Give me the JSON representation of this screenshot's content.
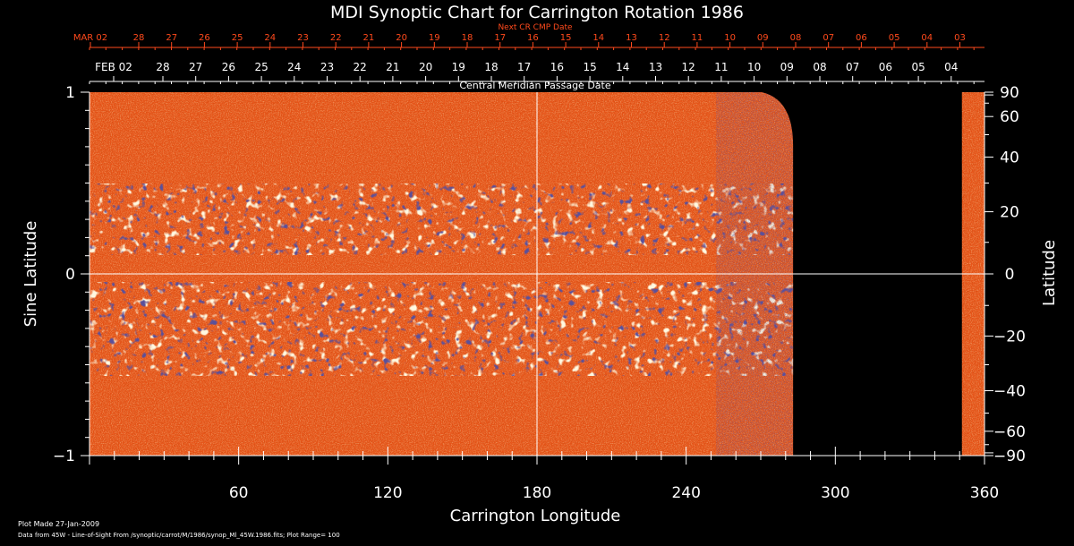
{
  "chart_data": {
    "type": "heatmap",
    "title": "MDI Synoptic Chart for Carrington Rotation 1986",
    "xlabel": "Carrington Longitude",
    "ylabel_left": "Sine Latitude",
    "ylabel_right": "Latitude",
    "xlim": [
      0,
      360
    ],
    "ylim": [
      -1,
      1
    ],
    "x_ticks": [
      60,
      120,
      180,
      240,
      300,
      360
    ],
    "y_left_ticks": [
      {
        "v": 1,
        "label": "1"
      },
      {
        "v": 0,
        "label": "0"
      },
      {
        "v": -1,
        "label": "−1"
      }
    ],
    "y_right_ticks": [
      90,
      60,
      40,
      20,
      0,
      -20,
      -40,
      -60,
      -90
    ],
    "y_right_labels": [
      "90",
      "60",
      "40",
      "20",
      "0",
      "−20",
      "−40",
      "−60",
      "−90"
    ],
    "top_axis_cmp_label": "Central Meridian Passage Date",
    "top_axis_next_label": "Next CR CMP Date",
    "cmp_dates": [
      "FEB 02",
      "28",
      "27",
      "26",
      "25",
      "24",
      "23",
      "22",
      "21",
      "20",
      "19",
      "18",
      "17",
      "16",
      "15",
      "14",
      "13",
      "12",
      "11",
      "10",
      "09",
      "08",
      "07",
      "06",
      "05",
      "04"
    ],
    "next_cmp_dates": [
      "MAR 02",
      "28",
      "27",
      "26",
      "25",
      "24",
      "23",
      "22",
      "21",
      "20",
      "19",
      "18",
      "17",
      "16",
      "15",
      "14",
      "13",
      "12",
      "11",
      "10",
      "09",
      "08",
      "07",
      "06",
      "05",
      "04",
      "03"
    ],
    "data_coverage_longitude": [
      [
        0,
        283
      ],
      [
        352,
        360
      ]
    ],
    "plot_range": 100,
    "colors": {
      "background": "#000000",
      "field_base": "#e8551a",
      "positive": "#fff6c8",
      "negative": "#1c1650",
      "next_axis": "#ff4a1c",
      "axis": "#ffffff"
    }
  },
  "footer": {
    "plot_made": "Plot Made 27-Jan-2009",
    "source": "Data from 45W - Line-of-Sight From /synoptic/carrot/M/1986/synop_Ml_45W.1986.fits; Plot Range=  100"
  }
}
